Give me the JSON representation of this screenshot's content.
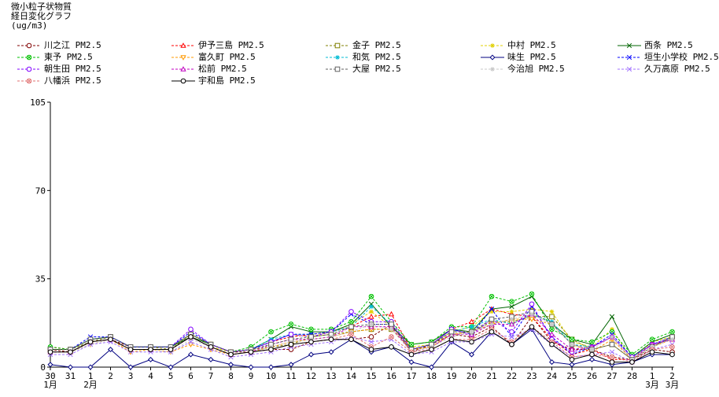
{
  "header": {
    "line1": "微小粒子状物質",
    "line2": "経日変化グラフ",
    "unit": "(ug/m3)"
  },
  "chart_data": {
    "type": "line",
    "title": "微小粒子状物質 経日変化グラフ",
    "ylabel": "(ug/m3)",
    "ylim": [
      0,
      105
    ],
    "yticks": [
      0,
      35,
      70,
      105
    ],
    "ytick_labels": [
      "0",
      "35",
      "70",
      "105"
    ],
    "categories": [
      "30",
      "31",
      "1",
      "2",
      "3",
      "4",
      "5",
      "6",
      "7",
      "8",
      "9",
      "10",
      "11",
      "12",
      "13",
      "14",
      "15",
      "16",
      "17",
      "18",
      "19",
      "20",
      "21",
      "22",
      "23",
      "24",
      "25",
      "26",
      "27",
      "28",
      "1",
      "2"
    ],
    "month_labels": [
      {
        "index": 0,
        "label": "1月"
      },
      {
        "index": 2,
        "label": "2月"
      },
      {
        "index": 30,
        "label": "3月"
      },
      {
        "index": 31,
        "label": "3月"
      }
    ],
    "series": [
      {
        "name": "川之江 PM2.5",
        "color": "#800000",
        "marker": "circle",
        "values": [
          7,
          6,
          10,
          11,
          8,
          8,
          8,
          13,
          9,
          6,
          6,
          7,
          7,
          10,
          11,
          11,
          12,
          17,
          6,
          9,
          13,
          12,
          16,
          9,
          20,
          10,
          7,
          7,
          4,
          3,
          7,
          6
        ]
      },
      {
        "name": "伊予三島 PM2.5",
        "color": "#ff0000",
        "marker": "triangle",
        "values": [
          8,
          7,
          11,
          12,
          8,
          8,
          8,
          13,
          9,
          6,
          7,
          10,
          12,
          13,
          14,
          16,
          20,
          21,
          7,
          9,
          15,
          18,
          23,
          21,
          20,
          11,
          5,
          7,
          3,
          3,
          9,
          11
        ]
      },
      {
        "name": "金子 PM2.5",
        "color": "#808000",
        "marker": "square",
        "values": [
          7,
          7,
          10,
          12,
          8,
          8,
          7,
          13,
          9,
          6,
          7,
          8,
          9,
          12,
          13,
          14,
          15,
          15,
          7,
          8,
          13,
          14,
          18,
          18,
          20,
          20,
          11,
          7,
          9,
          3,
          8,
          12
        ]
      },
      {
        "name": "中村 PM2.5",
        "color": "#e0d000",
        "marker": "star",
        "values": [
          6,
          6,
          10,
          11,
          7,
          7,
          7,
          12,
          8,
          6,
          7,
          10,
          13,
          12,
          14,
          17,
          22,
          16,
          8,
          9,
          14,
          16,
          22,
          22,
          23,
          22,
          10,
          8,
          15,
          3,
          10,
          12
        ]
      },
      {
        "name": "西条 PM2.5",
        "color": "#006400",
        "marker": "x",
        "values": [
          7,
          7,
          11,
          12,
          8,
          8,
          8,
          12,
          9,
          6,
          7,
          11,
          16,
          14,
          14,
          17,
          25,
          16,
          9,
          10,
          15,
          14,
          23,
          24,
          28,
          17,
          11,
          9,
          20,
          4,
          10,
          13
        ]
      },
      {
        "name": "東予 PM2.5",
        "color": "#00c000",
        "marker": "circlex",
        "values": [
          8,
          7,
          11,
          12,
          8,
          8,
          8,
          13,
          9,
          6,
          8,
          14,
          17,
          15,
          15,
          18,
          28,
          18,
          9,
          10,
          16,
          16,
          28,
          26,
          29,
          15,
          11,
          10,
          14,
          5,
          11,
          14
        ]
      },
      {
        "name": "富久町 PM2.5",
        "color": "#ff9900",
        "marker": "invtriangle",
        "values": [
          6,
          6,
          9,
          11,
          6,
          7,
          6,
          9,
          7,
          5,
          6,
          8,
          10,
          11,
          12,
          14,
          15,
          15,
          7,
          8,
          13,
          14,
          17,
          19,
          19,
          17,
          9,
          6,
          11,
          3,
          8,
          11
        ]
      },
      {
        "name": "和気 PM2.5",
        "color": "#00bcd4",
        "marker": "star",
        "values": [
          7,
          7,
          11,
          12,
          8,
          8,
          8,
          13,
          9,
          6,
          7,
          11,
          13,
          13,
          14,
          16,
          24,
          17,
          7,
          9,
          14,
          16,
          19,
          17,
          21,
          18,
          9,
          8,
          12,
          4,
          9,
          12
        ]
      },
      {
        "name": "味生 PM2.5",
        "color": "#000080",
        "marker": "diamond",
        "values": [
          1,
          0,
          0,
          7,
          0,
          3,
          0,
          5,
          3,
          1,
          0,
          0,
          1,
          5,
          6,
          11,
          6,
          8,
          2,
          0,
          10,
          5,
          14,
          9,
          15,
          2,
          1,
          3,
          1,
          2,
          5,
          5
        ]
      },
      {
        "name": "垣生小学校 PM2.5",
        "color": "#0000ff",
        "marker": "x",
        "values": [
          7,
          7,
          12,
          12,
          8,
          8,
          8,
          14,
          9,
          6,
          7,
          10,
          13,
          13,
          14,
          21,
          17,
          17,
          7,
          9,
          15,
          13,
          23,
          12,
          24,
          12,
          5,
          8,
          13,
          4,
          9,
          11
        ]
      },
      {
        "name": "朝生田 PM2.5",
        "color": "#8000ff",
        "marker": "circle",
        "values": [
          7,
          7,
          11,
          12,
          8,
          8,
          8,
          15,
          9,
          6,
          7,
          10,
          13,
          12,
          14,
          22,
          18,
          18,
          7,
          9,
          15,
          13,
          19,
          14,
          25,
          11,
          6,
          8,
          12,
          4,
          9,
          12
        ]
      },
      {
        "name": "松前 PM2.5",
        "color": "#c000c0",
        "marker": "triangle",
        "values": [
          6,
          6,
          10,
          11,
          7,
          7,
          7,
          12,
          8,
          5,
          6,
          9,
          11,
          11,
          12,
          16,
          16,
          16,
          6,
          8,
          13,
          13,
          17,
          17,
          21,
          13,
          7,
          8,
          12,
          3,
          9,
          11
        ]
      },
      {
        "name": "大屋 PM2.5",
        "color": "#606060",
        "marker": "square",
        "values": [
          7,
          7,
          11,
          12,
          8,
          8,
          8,
          13,
          9,
          6,
          7,
          9,
          11,
          12,
          13,
          16,
          17,
          17,
          7,
          9,
          14,
          14,
          19,
          20,
          22,
          17,
          9,
          7,
          9,
          3,
          8,
          12
        ]
      },
      {
        "name": "今治旭 PM2.5",
        "color": "#c8c8c8",
        "marker": "star",
        "values": [
          6,
          6,
          9,
          11,
          7,
          7,
          6,
          11,
          8,
          5,
          6,
          8,
          10,
          11,
          12,
          14,
          17,
          15,
          6,
          8,
          12,
          14,
          17,
          19,
          21,
          17,
          9,
          7,
          12,
          3,
          8,
          11
        ]
      },
      {
        "name": "久万高原 PM2.5",
        "color": "#a070ff",
        "marker": "x",
        "values": [
          5,
          5,
          9,
          10,
          6,
          6,
          6,
          10,
          7,
          4,
          5,
          6,
          8,
          9,
          10,
          12,
          10,
          11,
          5,
          6,
          10,
          10,
          13,
          12,
          15,
          9,
          4,
          5,
          6,
          2,
          7,
          9
        ]
      },
      {
        "name": "八幡浜 PM2.5",
        "color": "#e07070",
        "marker": "circlex",
        "values": [
          6,
          6,
          10,
          11,
          7,
          7,
          7,
          12,
          8,
          5,
          6,
          7,
          9,
          10,
          11,
          13,
          8,
          12,
          6,
          7,
          11,
          11,
          15,
          10,
          16,
          10,
          4,
          5,
          4,
          2,
          7,
          8
        ]
      },
      {
        "name": "宇和島 PM2.5",
        "color": "#000000",
        "marker": "circle",
        "values": [
          6,
          6,
          10,
          11,
          7,
          7,
          7,
          12,
          8,
          5,
          6,
          7,
          9,
          10,
          11,
          11,
          7,
          8,
          5,
          7,
          11,
          10,
          14,
          9,
          16,
          9,
          3,
          5,
          2,
          2,
          6,
          5
        ]
      }
    ]
  }
}
